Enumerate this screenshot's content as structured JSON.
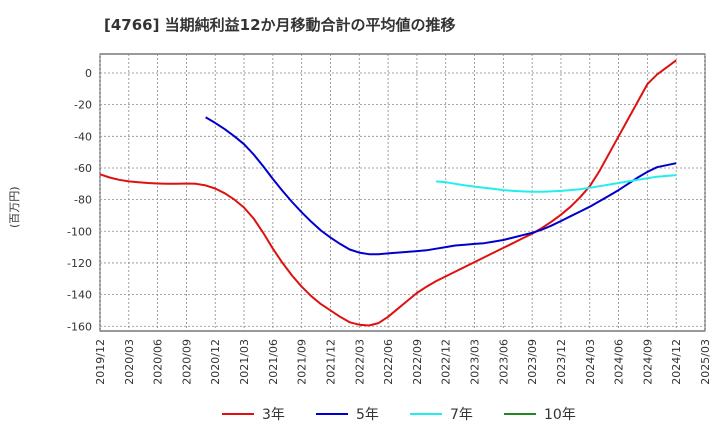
{
  "chart_data": {
    "type": "line",
    "title": "[4766]  当期純利益12か月移動合計の平均値の推移",
    "ylabel": "(百万円)",
    "xlabel": "",
    "ylim": [
      -163,
      12
    ],
    "yticks": [
      0,
      -20,
      -40,
      -60,
      -80,
      -100,
      -120,
      -140,
      -160
    ],
    "xticks": [
      "2019/12",
      "2020/03",
      "2020/06",
      "2020/09",
      "2020/12",
      "2021/03",
      "2021/06",
      "2021/09",
      "2021/12",
      "2022/03",
      "2022/06",
      "2022/09",
      "2022/12",
      "2023/03",
      "2023/06",
      "2023/09",
      "2023/12",
      "2024/03",
      "2024/06",
      "2024/09",
      "2024/12",
      "2025/03"
    ],
    "grid": true,
    "legend_position": "bottom",
    "series": [
      {
        "name": "3年",
        "color": "#dd1111",
        "points": [
          [
            "2019/12",
            -64
          ],
          [
            "2020/01",
            -66
          ],
          [
            "2020/02",
            -67.5
          ],
          [
            "2020/03",
            -68.5
          ],
          [
            "2020/04",
            -69
          ],
          [
            "2020/05",
            -69.5
          ],
          [
            "2020/06",
            -69.8
          ],
          [
            "2020/07",
            -70
          ],
          [
            "2020/08",
            -70
          ],
          [
            "2020/09",
            -69.8
          ],
          [
            "2020/10",
            -70
          ],
          [
            "2020/11",
            -71
          ],
          [
            "2020/12",
            -73
          ],
          [
            "2021/01",
            -76
          ],
          [
            "2021/02",
            -80
          ],
          [
            "2021/03",
            -85
          ],
          [
            "2021/04",
            -92
          ],
          [
            "2021/05",
            -101
          ],
          [
            "2021/06",
            -111
          ],
          [
            "2021/07",
            -120
          ],
          [
            "2021/08",
            -128
          ],
          [
            "2021/09",
            -135
          ],
          [
            "2021/10",
            -141
          ],
          [
            "2021/11",
            -146
          ],
          [
            "2021/12",
            -150
          ],
          [
            "2022/01",
            -154
          ],
          [
            "2022/02",
            -157.5
          ],
          [
            "2022/03",
            -159
          ],
          [
            "2022/04",
            -159.5
          ],
          [
            "2022/05",
            -158
          ],
          [
            "2022/06",
            -154
          ],
          [
            "2022/07",
            -149
          ],
          [
            "2022/08",
            -144
          ],
          [
            "2022/09",
            -139
          ],
          [
            "2022/10",
            -135
          ],
          [
            "2022/11",
            -131.5
          ],
          [
            "2022/12",
            -128.5
          ],
          [
            "2023/01",
            -125.5
          ],
          [
            "2023/02",
            -122.5
          ],
          [
            "2023/03",
            -119.5
          ],
          [
            "2023/04",
            -116.5
          ],
          [
            "2023/05",
            -113.5
          ],
          [
            "2023/06",
            -110.5
          ],
          [
            "2023/07",
            -107.5
          ],
          [
            "2023/08",
            -104.5
          ],
          [
            "2023/09",
            -101.5
          ],
          [
            "2023/10",
            -98
          ],
          [
            "2023/11",
            -94
          ],
          [
            "2023/12",
            -89.5
          ],
          [
            "2024/01",
            -84.5
          ],
          [
            "2024/02",
            -78.5
          ],
          [
            "2024/03",
            -71.5
          ],
          [
            "2024/04",
            -62
          ],
          [
            "2024/05",
            -51
          ],
          [
            "2024/06",
            -40
          ],
          [
            "2024/07",
            -29
          ],
          [
            "2024/08",
            -18
          ],
          [
            "2024/09",
            -7
          ],
          [
            "2024/10",
            -1
          ],
          [
            "2024/12",
            8
          ]
        ]
      },
      {
        "name": "5年",
        "color": "#0000cc",
        "points": [
          [
            "2020/11",
            -28
          ],
          [
            "2020/12",
            -31.5
          ],
          [
            "2021/01",
            -35.5
          ],
          [
            "2021/02",
            -40
          ],
          [
            "2021/03",
            -45
          ],
          [
            "2021/04",
            -51.5
          ],
          [
            "2021/05",
            -59
          ],
          [
            "2021/06",
            -67
          ],
          [
            "2021/07",
            -74.5
          ],
          [
            "2021/08",
            -81.5
          ],
          [
            "2021/09",
            -88
          ],
          [
            "2021/10",
            -94
          ],
          [
            "2021/11",
            -99.5
          ],
          [
            "2021/12",
            -104
          ],
          [
            "2022/01",
            -108
          ],
          [
            "2022/02",
            -111.5
          ],
          [
            "2022/03",
            -113.5
          ],
          [
            "2022/04",
            -114.5
          ],
          [
            "2022/05",
            -114.5
          ],
          [
            "2022/06",
            -114
          ],
          [
            "2022/07",
            -113.5
          ],
          [
            "2022/08",
            -113
          ],
          [
            "2022/09",
            -112.5
          ],
          [
            "2022/10",
            -112
          ],
          [
            "2022/11",
            -111
          ],
          [
            "2022/12",
            -110
          ],
          [
            "2023/01",
            -109
          ],
          [
            "2023/02",
            -108.5
          ],
          [
            "2023/03",
            -108
          ],
          [
            "2023/04",
            -107.5
          ],
          [
            "2023/05",
            -106.5
          ],
          [
            "2023/06",
            -105.5
          ],
          [
            "2023/07",
            -104
          ],
          [
            "2023/08",
            -102.5
          ],
          [
            "2023/09",
            -101
          ],
          [
            "2023/10",
            -99
          ],
          [
            "2023/11",
            -96.5
          ],
          [
            "2023/12",
            -93.5
          ],
          [
            "2024/01",
            -90.5
          ],
          [
            "2024/02",
            -87.5
          ],
          [
            "2024/03",
            -84.5
          ],
          [
            "2024/04",
            -81
          ],
          [
            "2024/05",
            -77.5
          ],
          [
            "2024/06",
            -74
          ],
          [
            "2024/07",
            -70
          ],
          [
            "2024/08",
            -66
          ],
          [
            "2024/09",
            -62.5
          ],
          [
            "2024/10",
            -59.5
          ],
          [
            "2024/12",
            -57
          ]
        ]
      },
      {
        "name": "7年",
        "color": "#22eeee",
        "points": [
          [
            "2022/11",
            -68.5
          ],
          [
            "2022/12",
            -69
          ],
          [
            "2023/01",
            -70
          ],
          [
            "2023/02",
            -71
          ],
          [
            "2023/03",
            -71.8
          ],
          [
            "2023/04",
            -72.5
          ],
          [
            "2023/05",
            -73.2
          ],
          [
            "2023/06",
            -74
          ],
          [
            "2023/07",
            -74.5
          ],
          [
            "2023/08",
            -74.8
          ],
          [
            "2023/09",
            -75
          ],
          [
            "2023/10",
            -75
          ],
          [
            "2023/11",
            -74.8
          ],
          [
            "2023/12",
            -74.5
          ],
          [
            "2024/01",
            -74
          ],
          [
            "2024/02",
            -73.5
          ],
          [
            "2024/03",
            -72.5
          ],
          [
            "2024/04",
            -71.5
          ],
          [
            "2024/05",
            -70.5
          ],
          [
            "2024/06",
            -69.5
          ],
          [
            "2024/07",
            -68.5
          ],
          [
            "2024/08",
            -67.5
          ],
          [
            "2024/09",
            -66.5
          ],
          [
            "2024/10",
            -65.5
          ],
          [
            "2024/12",
            -64.5
          ]
        ]
      },
      {
        "name": "10年",
        "color": "#228822",
        "points": []
      }
    ]
  }
}
